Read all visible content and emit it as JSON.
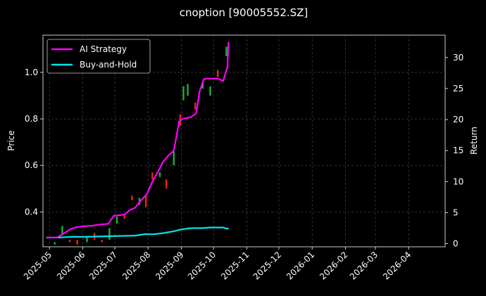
{
  "chart_data": {
    "type": "line",
    "title": "cnoption [90005552.SZ]",
    "xlabel": "",
    "ylabel_left": "Price",
    "ylabel_right": "Return",
    "x_range": [
      "2025-04-25",
      "2026-05-05"
    ],
    "ylim_left": [
      0.25,
      1.16
    ],
    "ylim_right": [
      -0.5,
      33.6
    ],
    "x_ticks": [
      "2025-05",
      "2025-06",
      "2025-07",
      "2025-08",
      "2025-09",
      "2025-10",
      "2025-11",
      "2025-12",
      "2026-01",
      "2026-02",
      "2026-03",
      "2026-04"
    ],
    "y_ticks_left": [
      "0.4",
      "0.6",
      "0.8",
      "1.0"
    ],
    "y_ticks_right": [
      "0",
      "5",
      "10",
      "15",
      "20",
      "25",
      "30"
    ],
    "grid": true,
    "legend_position": "top-left",
    "colors": {
      "background": "#000000",
      "ai_strategy": "#ff00ff",
      "buy_and_hold": "#00e5ee",
      "candle_up": "#1fae3c",
      "candle_down": "#e8231c",
      "grid": "#555555",
      "text": "#ffffff"
    },
    "series": [
      {
        "name": "AI Strategy",
        "axis": "right",
        "x": [
          "2025-04-28",
          "2025-05-08",
          "2025-05-15",
          "2025-05-20",
          "2025-05-25",
          "2025-06-01",
          "2025-06-10",
          "2025-06-18",
          "2025-06-25",
          "2025-06-30",
          "2025-07-05",
          "2025-07-10",
          "2025-07-15",
          "2025-07-20",
          "2025-07-25",
          "2025-07-31",
          "2025-08-05",
          "2025-08-10",
          "2025-08-15",
          "2025-08-20",
          "2025-08-25",
          "2025-08-30",
          "2025-09-02",
          "2025-09-05",
          "2025-09-10",
          "2025-09-15",
          "2025-09-18",
          "2025-09-22",
          "2025-09-25",
          "2025-09-28",
          "2025-10-05",
          "2025-10-10",
          "2025-10-14",
          "2025-10-15"
        ],
        "values": [
          1.0,
          1.0,
          1.7,
          2.3,
          2.6,
          2.8,
          2.9,
          3.1,
          3.2,
          4.5,
          4.6,
          4.7,
          5.4,
          5.8,
          6.9,
          8.0,
          10.0,
          11.5,
          13.2,
          14.2,
          15.0,
          19.7,
          20.1,
          20.2,
          20.4,
          21.0,
          24.5,
          26.5,
          26.6,
          26.6,
          26.6,
          26.2,
          28.5,
          32.5
        ]
      },
      {
        "name": "Buy-and-Hold",
        "axis": "right",
        "x": [
          "2025-04-28",
          "2025-05-10",
          "2025-05-20",
          "2025-06-01",
          "2025-06-15",
          "2025-06-25",
          "2025-07-05",
          "2025-07-20",
          "2025-07-30",
          "2025-08-05",
          "2025-08-15",
          "2025-08-25",
          "2025-09-01",
          "2025-09-10",
          "2025-09-20",
          "2025-09-28",
          "2025-10-05",
          "2025-10-10",
          "2025-10-14",
          "2025-10-15"
        ],
        "values": [
          1.0,
          1.0,
          1.1,
          1.1,
          1.15,
          1.2,
          1.25,
          1.3,
          1.55,
          1.5,
          1.7,
          2.0,
          2.3,
          2.5,
          2.5,
          2.6,
          2.6,
          2.6,
          2.4,
          2.5
        ]
      }
    ],
    "candles": [
      {
        "x": "2025-05-06",
        "open": 0.26,
        "close": 0.27
      },
      {
        "x": "2025-05-13",
        "open": 0.3,
        "close": 0.34
      },
      {
        "x": "2025-05-20",
        "open": 0.28,
        "close": 0.27
      },
      {
        "x": "2025-05-27",
        "open": 0.28,
        "close": 0.26
      },
      {
        "x": "2025-06-05",
        "open": 0.27,
        "close": 0.29
      },
      {
        "x": "2025-06-12",
        "open": 0.31,
        "close": 0.28
      },
      {
        "x": "2025-06-19",
        "open": 0.28,
        "close": 0.27
      },
      {
        "x": "2025-06-26",
        "open": 0.28,
        "close": 0.33
      },
      {
        "x": "2025-07-03",
        "open": 0.35,
        "close": 0.38
      },
      {
        "x": "2025-07-10",
        "open": 0.39,
        "close": 0.37
      },
      {
        "x": "2025-07-17",
        "open": 0.47,
        "close": 0.45
      },
      {
        "x": "2025-07-24",
        "open": 0.43,
        "close": 0.46
      },
      {
        "x": "2025-07-30",
        "open": 0.47,
        "close": 0.42
      },
      {
        "x": "2025-08-05",
        "open": 0.57,
        "close": 0.54
      },
      {
        "x": "2025-08-12",
        "open": 0.55,
        "close": 0.57
      },
      {
        "x": "2025-08-18",
        "open": 0.54,
        "close": 0.5
      },
      {
        "x": "2025-08-25",
        "open": 0.6,
        "close": 0.66
      },
      {
        "x": "2025-08-31",
        "open": 0.82,
        "close": 0.77
      },
      {
        "x": "2025-09-03",
        "open": 0.88,
        "close": 0.94
      },
      {
        "x": "2025-09-07",
        "open": 0.9,
        "close": 0.95
      },
      {
        "x": "2025-09-14",
        "open": 0.87,
        "close": 0.84
      },
      {
        "x": "2025-09-21",
        "open": 0.93,
        "close": 0.96
      },
      {
        "x": "2025-09-28",
        "open": 0.9,
        "close": 0.94
      },
      {
        "x": "2025-10-05",
        "open": 1.01,
        "close": 0.98
      },
      {
        "x": "2025-10-10",
        "open": 0.97,
        "close": 0.96
      },
      {
        "x": "2025-10-13",
        "open": 1.07,
        "close": 1.11
      }
    ]
  }
}
